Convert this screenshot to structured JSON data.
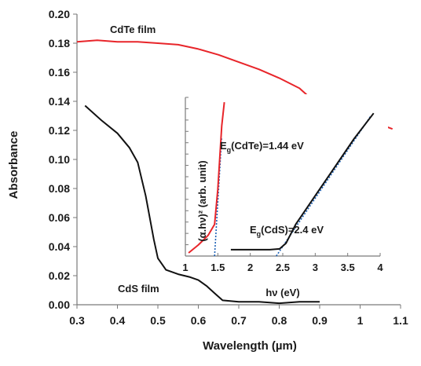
{
  "chart_data": [
    {
      "type": "line",
      "xlabel": "Wavelength (µm)",
      "ylabel": "Absorbance",
      "xlim": [
        0.3,
        1.1
      ],
      "ylim": [
        0.0,
        0.2
      ],
      "xticks": [
        "0.3",
        "0.4",
        "0.5",
        "0.6",
        "0.7",
        "0.8",
        "0.9",
        "1",
        "1.1"
      ],
      "yticks": [
        "0.00",
        "0.02",
        "0.04",
        "0.06",
        "0.08",
        "0.10",
        "0.12",
        "0.14",
        "0.16",
        "0.18",
        "0.20"
      ],
      "grid": false,
      "series": [
        {
          "name": "CdTe film",
          "color": "#e8252a",
          "x": [
            0.3,
            0.35,
            0.4,
            0.45,
            0.5,
            0.55,
            0.6,
            0.65,
            0.7,
            0.75,
            0.8,
            0.85,
            0.87,
            0.9,
            0.95,
            1.0,
            1.05,
            1.08
          ],
          "y": [
            0.181,
            0.182,
            0.181,
            0.181,
            0.18,
            0.179,
            0.176,
            0.172,
            0.167,
            0.162,
            0.156,
            0.149,
            0.144,
            0.14,
            0.134,
            0.129,
            0.124,
            0.121
          ]
        },
        {
          "name": "CdS film",
          "color": "#111111",
          "x": [
            0.32,
            0.36,
            0.4,
            0.43,
            0.45,
            0.47,
            0.49,
            0.5,
            0.52,
            0.55,
            0.58,
            0.6,
            0.62,
            0.64,
            0.66,
            0.7,
            0.75,
            0.8,
            0.85,
            0.9
          ],
          "y": [
            0.137,
            0.127,
            0.118,
            0.108,
            0.098,
            0.075,
            0.045,
            0.032,
            0.024,
            0.021,
            0.019,
            0.017,
            0.013,
            0.008,
            0.003,
            0.002,
            0.002,
            0.001,
            0.002,
            0.002
          ]
        }
      ]
    },
    {
      "type": "line",
      "xlabel": "hν (eV)",
      "ylabel": "(α.hν)² (arb. unit)",
      "xlim": [
        1,
        4
      ],
      "ylim": [
        0,
        1
      ],
      "xticks": [
        "1",
        "1.5",
        "2",
        "2.5",
        "3",
        "3.5",
        "4"
      ],
      "series": [
        {
          "name": "CdTe",
          "color": "#e8252a",
          "x": [
            1.05,
            1.2,
            1.35,
            1.45,
            1.5,
            1.53,
            1.56,
            1.6
          ],
          "y": [
            0.02,
            0.07,
            0.13,
            0.2,
            0.42,
            0.62,
            0.82,
            0.97
          ]
        },
        {
          "name": "CdS",
          "color": "#111111",
          "x": [
            1.7,
            2.0,
            2.3,
            2.45,
            2.55,
            2.7,
            3.0,
            3.3,
            3.6,
            3.9
          ],
          "y": [
            0.04,
            0.04,
            0.04,
            0.045,
            0.08,
            0.2,
            0.38,
            0.56,
            0.74,
            0.9
          ]
        }
      ],
      "fits": [
        {
          "name": "CdTe fit",
          "color": "#1a5fb4",
          "x": [
            1.45,
            1.56
          ],
          "y": [
            0.0,
            0.75
          ]
        },
        {
          "name": "CdS fit",
          "color": "#1a5fb4",
          "x": [
            2.4,
            3.85
          ],
          "y": [
            0.0,
            0.88
          ]
        }
      ]
    }
  ],
  "annotations": {
    "cdte_label": "CdTe film",
    "cds_label": "CdS film",
    "eg_cdte_prefix": "E",
    "eg_cdte_sub": "g",
    "eg_cdte_rest": "(CdTe)=1.44 eV",
    "eg_cds_prefix": "E",
    "eg_cds_sub": "g",
    "eg_cds_rest": "(CdS)=2.4 eV"
  }
}
